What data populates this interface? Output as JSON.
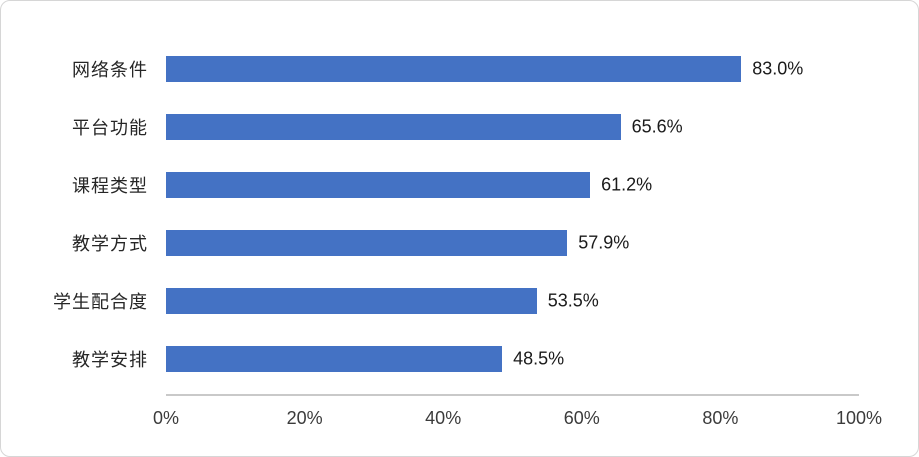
{
  "chart_data": {
    "type": "bar",
    "orientation": "horizontal",
    "title": "",
    "xlabel": "",
    "ylabel": "",
    "categories": [
      "网络条件",
      "平台功能",
      "课程类型",
      "教学方式",
      "学生配合度",
      "教学安排"
    ],
    "values": [
      83.0,
      65.6,
      61.2,
      57.9,
      53.5,
      48.5
    ],
    "value_labels": [
      "83.0%",
      "65.6%",
      "61.2%",
      "57.9%",
      "53.5%",
      "48.5%"
    ],
    "x_ticks": [
      "0%",
      "20%",
      "40%",
      "60%",
      "80%",
      "100%"
    ],
    "xlim": [
      0,
      100
    ],
    "grid": false,
    "legend": false,
    "bar_color": "#4472C4"
  }
}
